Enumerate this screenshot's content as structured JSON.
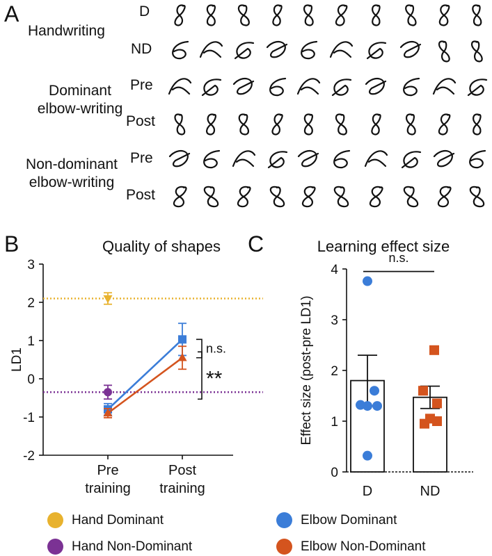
{
  "panel_a": {
    "letter": "A",
    "groups": [
      {
        "title": "Handwriting",
        "rows": [
          {
            "label": "D",
            "style": "hw_d"
          },
          {
            "label": "ND",
            "style": "hw_nd"
          }
        ]
      },
      {
        "title_lines": [
          "Dominant",
          "elbow-writing"
        ],
        "rows": [
          {
            "label": "Pre",
            "style": "d_pre"
          },
          {
            "label": "Post",
            "style": "d_post"
          }
        ]
      },
      {
        "title_lines": [
          "Non-dominant",
          "elbow-writing"
        ],
        "rows": [
          {
            "label": "Pre",
            "style": "nd_pre"
          },
          {
            "label": "Post",
            "style": "nd_post"
          }
        ]
      }
    ]
  },
  "panel_b": {
    "letter": "B"
  },
  "panel_c": {
    "letter": "C"
  },
  "colors": {
    "hand_dominant": "#E8B22E",
    "hand_nondominant": "#7B3294",
    "elbow_dominant": "#3B7DD8",
    "elbow_nondominant": "#D4541E"
  },
  "chart_data": [
    {
      "type": "line",
      "title": "Quality of shapes",
      "xlabel": "",
      "ylabel": "LD1",
      "categories": [
        [
          "Pre",
          "training"
        ],
        [
          "Post",
          "training"
        ]
      ],
      "ylim": [
        -2,
        3
      ],
      "yticks": [
        "3",
        "2",
        "1",
        "0",
        "-1",
        "-2"
      ],
      "series": [
        {
          "name": "Hand Dominant",
          "color_key": "hand_dominant",
          "marker": "triangle-down",
          "points": [
            {
              "x": 0,
              "y": 2.1,
              "err": 0.15
            }
          ],
          "reference_line": 2.1
        },
        {
          "name": "Hand Non-Dominant",
          "color_key": "hand_nondominant",
          "marker": "circle",
          "points": [
            {
              "x": 0,
              "y": -0.35,
              "err": 0.18
            }
          ],
          "reference_line": -0.35
        },
        {
          "name": "Elbow Dominant",
          "color_key": "elbow_dominant",
          "marker": "square",
          "points": [
            {
              "x": 0,
              "y": -0.8,
              "err": 0.15
            },
            {
              "x": 1,
              "y": 1.03,
              "err": 0.42
            }
          ]
        },
        {
          "name": "Elbow Non-Dominant",
          "color_key": "elbow_nondominant",
          "marker": "triangle-up",
          "points": [
            {
              "x": 0,
              "y": -0.9,
              "err": 0.12
            },
            {
              "x": 1,
              "y": 0.55,
              "err": 0.3
            }
          ]
        }
      ],
      "annotations": [
        "n.s.",
        "**"
      ]
    },
    {
      "type": "bar",
      "title": "Learning effect size",
      "xlabel": "",
      "ylabel": "Effect size (post-pre LD1)",
      "categories": [
        "D",
        "ND"
      ],
      "values": [
        1.8,
        1.47
      ],
      "errors": [
        0.5,
        0.22
      ],
      "ylim": [
        0,
        4
      ],
      "yticks": [
        "4",
        "3",
        "2",
        "1",
        "0"
      ],
      "points": [
        {
          "category": "D",
          "color_key": "elbow_dominant",
          "marker": "circle",
          "values": [
            3.76,
            1.6,
            1.32,
            1.3,
            1.3,
            0.32
          ]
        },
        {
          "category": "ND",
          "color_key": "elbow_nondominant",
          "marker": "square",
          "values": [
            2.4,
            1.6,
            1.35,
            1.05,
            1.0,
            0.95
          ]
        }
      ],
      "annotations": [
        "n.s."
      ]
    }
  ],
  "legend": {
    "items": [
      {
        "label": "Hand Dominant",
        "color_key": "hand_dominant"
      },
      {
        "label": "Elbow Dominant",
        "color_key": "elbow_dominant"
      },
      {
        "label": "Hand Non-Dominant",
        "color_key": "hand_nondominant"
      },
      {
        "label": "Elbow Non-Dominant",
        "color_key": "elbow_nondominant"
      }
    ]
  }
}
